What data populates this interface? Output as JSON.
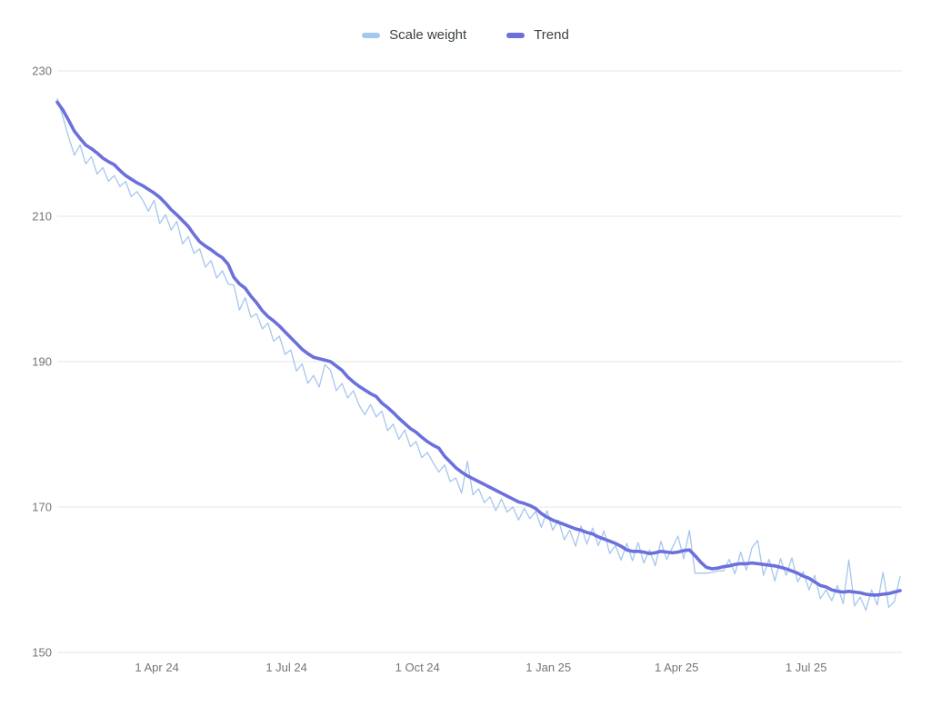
{
  "style": {
    "background": "#ffffff",
    "grid_color": "#e6e6e6",
    "axis_label_color": "#757575",
    "legend_text_color": "#3c4043"
  },
  "legend": {
    "items": [
      {
        "label": "Scale weight",
        "color": "#a5c6ee"
      },
      {
        "label": "Trend",
        "color": "#6b70dc"
      }
    ]
  },
  "chart_data": {
    "type": "line",
    "title": "",
    "grid": "horizontal",
    "legend_position": "top-center",
    "start_date": "2024-01-22",
    "step_days": 4,
    "ylim": [
      150,
      230
    ],
    "y_ticks": [
      150,
      170,
      190,
      210,
      230
    ],
    "x_ticks": [
      {
        "label": "1 Apr 24",
        "day": 70
      },
      {
        "label": "1 Jul 24",
        "day": 161
      },
      {
        "label": "1 Oct 24",
        "day": 253
      },
      {
        "label": "1 Jan 25",
        "day": 345
      },
      {
        "label": "1 Apr 25",
        "day": 435
      },
      {
        "label": "1 Jul 25",
        "day": 526
      }
    ],
    "series": [
      {
        "name": "Scale weight",
        "color": "#a5c6ee",
        "width": 1.3,
        "values": [
          226.2,
          223.6,
          220.9,
          218.4,
          219.8,
          217.2,
          218.2,
          215.8,
          216.7,
          214.8,
          215.6,
          214.1,
          214.8,
          212.7,
          213.4,
          212.2,
          210.7,
          212.2,
          209.0,
          210.2,
          208.1,
          209.3,
          206.2,
          207.2,
          204.9,
          205.5,
          203.0,
          203.9,
          201.5,
          202.5,
          200.7,
          200.5,
          197.1,
          198.8,
          196.1,
          196.6,
          194.5,
          195.3,
          192.8,
          193.5,
          191.0,
          191.6,
          188.7,
          189.7,
          187.0,
          188.1,
          186.5,
          189.6,
          188.8,
          186.0,
          187.0,
          185.0,
          186.0,
          184.0,
          182.7,
          184.1,
          182.4,
          183.2,
          180.5,
          181.4,
          179.3,
          180.6,
          178.3,
          179.0,
          176.8,
          177.5,
          176.1,
          174.8,
          175.8,
          173.5,
          174.0,
          171.9,
          176.3,
          171.7,
          172.5,
          170.6,
          171.4,
          169.5,
          171.1,
          169.3,
          170.0,
          168.2,
          169.8,
          168.4,
          169.4,
          167.2,
          169.5,
          166.8,
          168.2,
          165.5,
          166.8,
          164.6,
          167.4,
          164.9,
          167.1,
          164.7,
          166.7,
          163.6,
          164.7,
          162.7,
          165.0,
          162.6,
          165.1,
          162.3,
          164.1,
          161.9,
          165.3,
          162.8,
          164.4,
          166.0,
          162.9,
          166.8,
          160.9,
          160.9,
          160.9,
          161.0,
          161.2,
          161.2,
          162.8,
          160.8,
          163.8,
          161.3,
          164.4,
          165.4,
          160.6,
          162.8,
          159.8,
          162.9,
          160.6,
          163.0,
          159.7,
          161.1,
          158.6,
          160.6,
          157.4,
          158.6,
          157.1,
          159.2,
          156.7,
          162.7,
          156.4,
          157.6,
          155.8,
          158.6,
          156.5,
          161.0,
          156.2,
          157.0,
          160.4
        ]
      },
      {
        "name": "Trend",
        "color": "#6b70dc",
        "width": 3.6,
        "values": [
          225.7,
          224.6,
          223.2,
          221.7,
          220.7,
          219.8,
          219.3,
          218.7,
          218.0,
          217.5,
          217.1,
          216.3,
          215.6,
          215.1,
          214.6,
          214.2,
          213.7,
          213.2,
          212.6,
          211.8,
          210.9,
          210.2,
          209.4,
          208.6,
          207.5,
          206.5,
          205.9,
          205.4,
          204.8,
          204.3,
          203.4,
          201.6,
          200.7,
          200.1,
          199.0,
          198.1,
          197.0,
          196.2,
          195.6,
          194.9,
          194.1,
          193.3,
          192.5,
          191.7,
          191.1,
          190.6,
          190.4,
          190.2,
          190.0,
          189.4,
          188.8,
          187.9,
          187.2,
          186.6,
          186.1,
          185.6,
          185.2,
          184.3,
          183.7,
          183.0,
          182.2,
          181.5,
          180.8,
          180.3,
          179.6,
          179.0,
          178.5,
          178.1,
          177.0,
          176.2,
          175.4,
          174.8,
          174.3,
          173.9,
          173.5,
          173.1,
          172.7,
          172.3,
          171.9,
          171.5,
          171.1,
          170.7,
          170.5,
          170.2,
          169.8,
          169.1,
          168.6,
          168.2,
          167.9,
          167.6,
          167.3,
          167.0,
          166.8,
          166.5,
          166.3,
          165.9,
          165.6,
          165.3,
          165.0,
          164.6,
          164.1,
          163.9,
          163.9,
          163.8,
          163.6,
          163.7,
          163.9,
          163.8,
          163.7,
          163.8,
          164.0,
          164.1,
          163.3,
          162.4,
          161.7,
          161.5,
          161.6,
          161.8,
          161.9,
          162.1,
          162.2,
          162.2,
          162.3,
          162.2,
          162.1,
          162.0,
          161.9,
          161.7,
          161.5,
          161.2,
          160.9,
          160.5,
          160.2,
          159.7,
          159.2,
          159.0,
          158.6,
          158.4,
          158.3,
          158.4,
          158.3,
          158.2,
          158.0,
          157.9,
          157.9,
          158.0,
          158.1,
          158.3,
          158.5
        ]
      }
    ]
  }
}
